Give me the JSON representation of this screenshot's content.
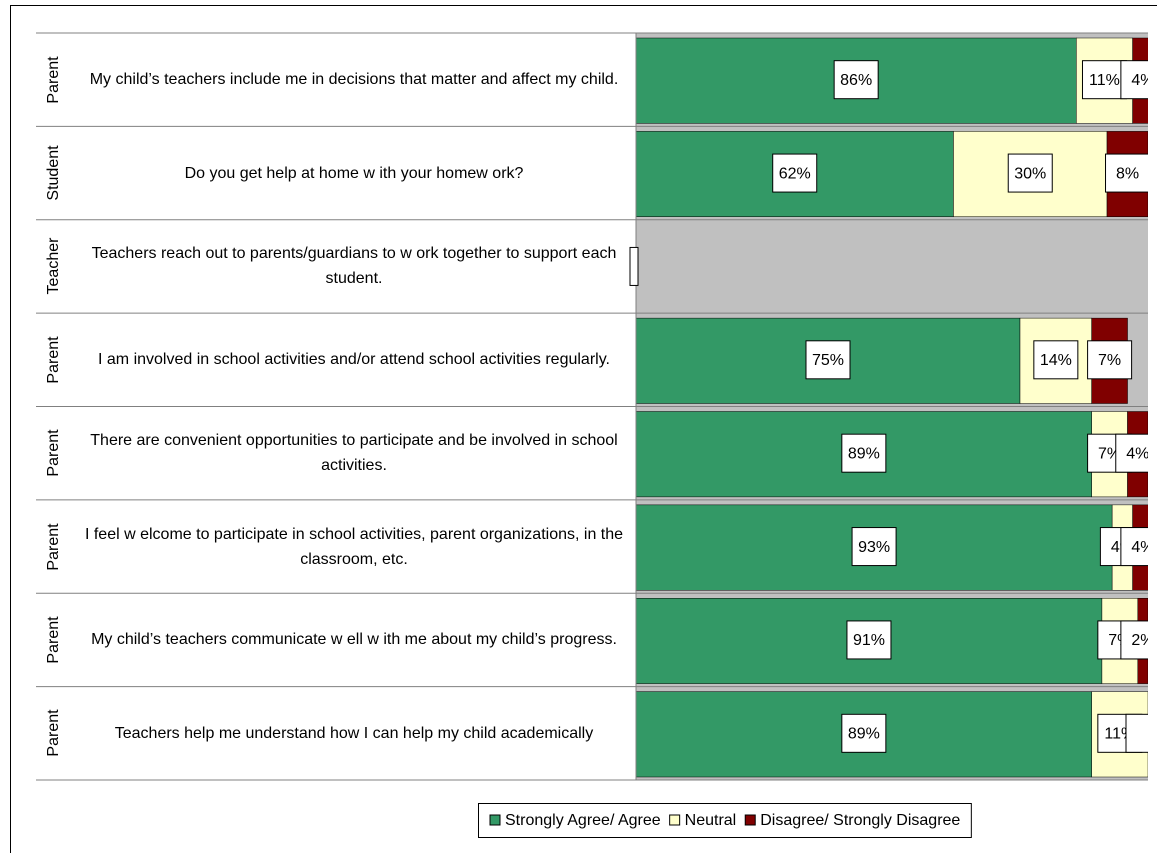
{
  "chart_data": {
    "type": "bar",
    "orientation": "horizontal",
    "stacked": true,
    "groups": [
      "Parent",
      "Student",
      "Teacher",
      "Parent",
      "Parent",
      "Parent",
      "Parent",
      "Parent"
    ],
    "categories": [
      "My child’s teachers include me in decisions that matter and affect my child.",
      "Do you get help at home w ith your homew ork?",
      "Teachers reach out to parents/guardians to w ork together to support each student.",
      "I am involved in school activities and/or attend school activities regularly.",
      "There are convenient opportunities to participate and be involved in school activities.",
      "I feel w elcome to participate in school activities, parent organizations, in the classroom, etc.",
      "My child’s teachers communicate w ell w ith me about my child’s progress.",
      "Teachers help me understand how  I can help my child academically"
    ],
    "xlim": [
      0,
      100
    ],
    "series": [
      {
        "name": "Strongly Agree/ Agree",
        "color": "#339966",
        "values": [
          86,
          62,
          null,
          75,
          89,
          93,
          91,
          89
        ],
        "value_labels": [
          "86%",
          "62%",
          null,
          "75%",
          "89%",
          "93%",
          "91%",
          "89%"
        ]
      },
      {
        "name": "Neutral",
        "color": "#ffffcc",
        "values": [
          11,
          30,
          null,
          14,
          7,
          4,
          7,
          11
        ],
        "value_labels": [
          "11%",
          "30%",
          null,
          "14%",
          "7%",
          "4%",
          "7%",
          "11%"
        ]
      },
      {
        "name": "Disagree/ Strongly Disagree",
        "color": "#800000",
        "values": [
          4,
          8,
          null,
          7,
          4,
          4,
          2,
          0
        ],
        "value_labels": [
          "4%",
          "8%",
          null,
          "7%",
          "4%",
          "4%",
          "2%",
          null
        ]
      }
    ],
    "legend": "bottom"
  }
}
